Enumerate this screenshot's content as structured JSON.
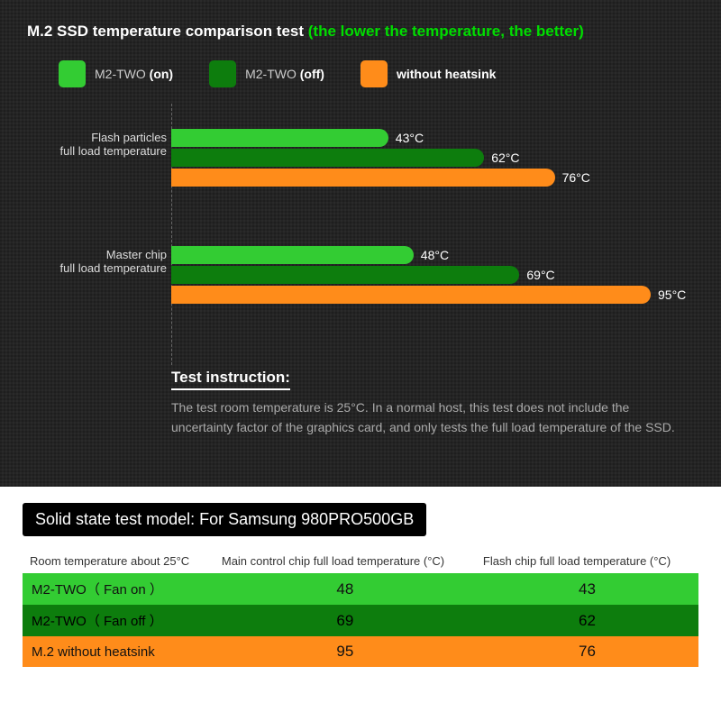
{
  "header": {
    "title_white": "M.2 SSD temperature comparison test ",
    "title_green": "(the lower the temperature, the better)"
  },
  "legend": {
    "items": [
      {
        "color": "#33cc33",
        "name": "M2-TWO",
        "state": "(on)"
      },
      {
        "color": "#0d7d0d",
        "name": "M2-TWO",
        "state": "(off)"
      },
      {
        "color": "#ff8c1a",
        "name": "without heatsink",
        "state": ""
      }
    ]
  },
  "chart": {
    "max_value": 100,
    "bar_area_width": 560,
    "groups": [
      {
        "label_line1": "Flash particles",
        "label_line2": "full load temperature",
        "bars": [
          {
            "value": 43,
            "label": "43°C",
            "color": "#33cc33"
          },
          {
            "value": 62,
            "label": "62°C",
            "color": "#0d7d0d"
          },
          {
            "value": 76,
            "label": "76°C",
            "color": "#ff8c1a"
          }
        ]
      },
      {
        "label_line1": "Master chip",
        "label_line2": "full load temperature",
        "bars": [
          {
            "value": 48,
            "label": "48°C",
            "color": "#33cc33"
          },
          {
            "value": 69,
            "label": "69°C",
            "color": "#0d7d0d"
          },
          {
            "value": 95,
            "label": "95°C",
            "color": "#ff8c1a"
          }
        ]
      }
    ]
  },
  "instruction": {
    "heading": "Test instruction:",
    "body": "The test room temperature is 25°C. In a normal host, this test does not include the uncertainty factor of the graphics card, and only tests the full load temperature of the SSD."
  },
  "table": {
    "title": "Solid state test model: For Samsung 980PRO500GB",
    "columns": [
      "Room temperature about 25°C",
      "Main control chip full load temperature (°C)",
      "Flash chip full load temperature (°C)"
    ],
    "rows": [
      {
        "class": "r-on",
        "label": "M2-TWO（  Fan on  ）",
        "main": "48",
        "flash": "43"
      },
      {
        "class": "r-off",
        "label": "M2-TWO（  Fan off  ）",
        "main": "69",
        "flash": "62"
      },
      {
        "class": "r-no",
        "label": "M.2 without heatsink",
        "main": "95",
        "flash": "76"
      }
    ]
  }
}
